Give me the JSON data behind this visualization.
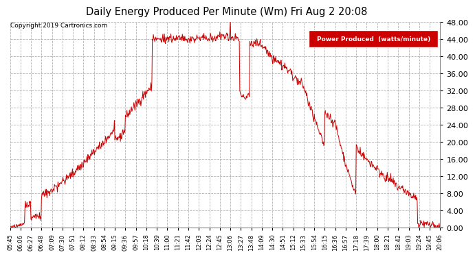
{
  "title": "Daily Energy Produced Per Minute (Wm) Fri Aug 2 20:08",
  "copyright": "Copyright 2019 Cartronics.com",
  "legend_label": "Power Produced  (watts/minute)",
  "line_color": "#cc0000",
  "bg_color": "#ffffff",
  "grid_color": "#aaaaaa",
  "ylim": [
    0.0,
    48.0
  ],
  "yticks": [
    0.0,
    4.0,
    8.0,
    12.0,
    16.0,
    20.0,
    24.0,
    28.0,
    32.0,
    36.0,
    40.0,
    44.0,
    48.0
  ],
  "x_tick_labels": [
    "05:45",
    "06:06",
    "06:27",
    "06:48",
    "07:09",
    "07:30",
    "07:51",
    "08:12",
    "08:33",
    "08:54",
    "09:15",
    "09:36",
    "09:57",
    "10:18",
    "10:39",
    "11:00",
    "11:21",
    "11:42",
    "12:03",
    "12:24",
    "12:45",
    "13:06",
    "13:27",
    "13:48",
    "14:09",
    "14:30",
    "14:51",
    "15:12",
    "15:33",
    "15:54",
    "16:15",
    "16:36",
    "16:57",
    "17:18",
    "17:39",
    "18:00",
    "18:21",
    "18:42",
    "19:03",
    "19:24",
    "19:45",
    "20:06"
  ],
  "legend_bg": "#cc0000",
  "legend_text_color": "#ffffff"
}
